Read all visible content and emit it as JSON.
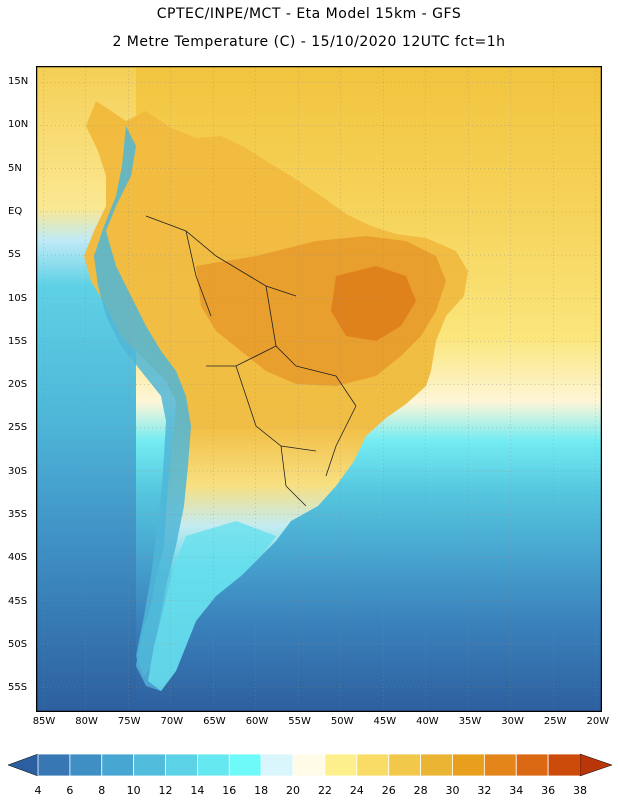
{
  "title_line1": "CPTEC/INPE/MCT -  Eta Model 15km - GFS",
  "title_line2": "2 Metre Temperature (C) - 15/10/2020 12UTC fct=1h",
  "lat_labels": [
    "15N",
    "10N",
    "5N",
    "EQ",
    "5S",
    "10S",
    "15S",
    "20S",
    "25S",
    "30S",
    "35S",
    "40S",
    "45S",
    "50S",
    "55S"
  ],
  "lon_labels": [
    "85W",
    "80W",
    "75W",
    "70W",
    "65W",
    "60W",
    "55W",
    "50W",
    "45W",
    "40W",
    "35W",
    "30W",
    "25W",
    "20W"
  ],
  "colorbar": {
    "levels": [
      "4",
      "6",
      "8",
      "10",
      "12",
      "14",
      "16",
      "18",
      "20",
      "22",
      "24",
      "26",
      "28",
      "30",
      "32",
      "34",
      "36",
      "38"
    ],
    "colors": [
      "#2c5fa0",
      "#3677b4",
      "#3f8fc4",
      "#48a6d2",
      "#52bcdc",
      "#5cd2e6",
      "#66e8f0",
      "#6ffafa",
      "#d8f6fb",
      "#fffbe6",
      "#fdf08c",
      "#f9dc65",
      "#f2c84a",
      "#ebb534",
      "#e8a01c",
      "#e38519",
      "#db6813",
      "#cc4a0a",
      "#b8360a"
    ]
  },
  "map": {
    "ocean_color_north": "#f1c340",
    "ocean_color_south": "#2e5f9e",
    "land_color": "#f0b43a",
    "hot_color": "#e08a22",
    "andes_color": "#5fd4e8"
  }
}
